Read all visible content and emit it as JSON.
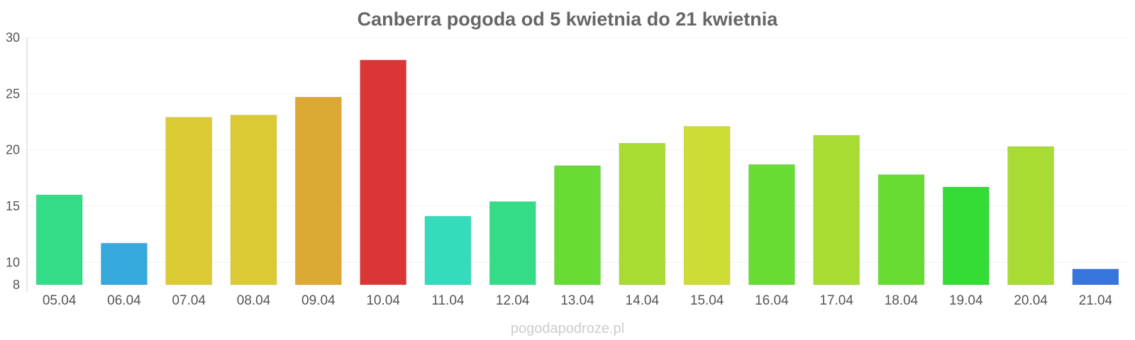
{
  "chart_data": {
    "type": "bar",
    "title": "Canberra pogoda od 5 kwietnia do 21 kwietnia",
    "categories": [
      "05.04",
      "06.04",
      "07.04",
      "08.04",
      "09.04",
      "10.04",
      "11.04",
      "12.04",
      "13.04",
      "14.04",
      "15.04",
      "16.04",
      "17.04",
      "18.04",
      "19.04",
      "20.04",
      "21.04"
    ],
    "values": [
      16,
      11.7,
      22.9,
      23.1,
      24.7,
      28,
      14.1,
      15.4,
      18.6,
      20.6,
      22.1,
      18.7,
      21.3,
      17.8,
      16.7,
      20.3,
      9.4
    ],
    "colors": [
      "#35dc88",
      "#35a8dc",
      "#dcca35",
      "#dcca35",
      "#dca935",
      "#dc3535",
      "#35dcbc",
      "#35dc88",
      "#68dc35",
      "#a8dc35",
      "#cedd35",
      "#68dc35",
      "#a8dc35",
      "#68dc35",
      "#35dc35",
      "#a8dc35",
      "#3575dc"
    ],
    "ylim": [
      8,
      30
    ],
    "yticks": [
      "8",
      "10",
      "15",
      "20",
      "25",
      "30"
    ],
    "ytick_values": [
      8,
      10,
      15,
      20,
      25,
      30
    ],
    "grid": true,
    "xlabel": "",
    "ylabel": ""
  },
  "footer": {
    "credit": "pogodapodroze.pl"
  }
}
